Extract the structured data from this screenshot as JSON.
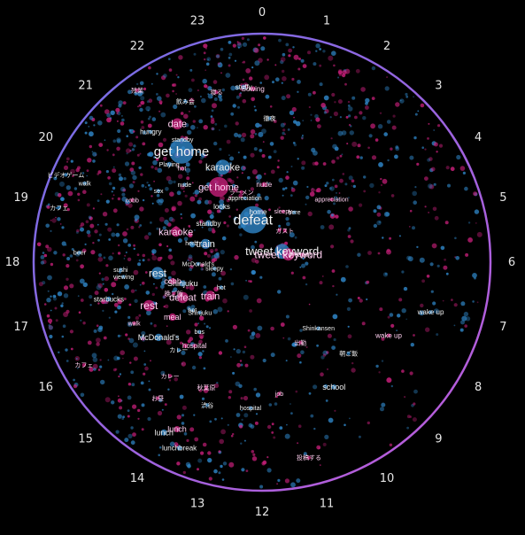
{
  "chart_data": {
    "type": "scatter",
    "layout": "radial 24-hour clock",
    "background": "#000000",
    "colors": {
      "series_blue": "#2f86c8",
      "series_pink": "#c81f7a",
      "ring_start": "#6f6fe6",
      "ring_end": "#c05ad8"
    },
    "hours": [
      "0",
      "1",
      "2",
      "3",
      "4",
      "5",
      "6",
      "7",
      "8",
      "9",
      "10",
      "11",
      "12",
      "13",
      "14",
      "15",
      "16",
      "17",
      "18",
      "19",
      "20",
      "21",
      "22",
      "23"
    ],
    "keywords": [
      {
        "text": "get home",
        "hour": 21.6,
        "r": 0.6,
        "size": 15,
        "weight": 20,
        "color": "blue"
      },
      {
        "text": "get home",
        "hour": 22.0,
        "r": 0.38,
        "size": 11,
        "weight": 16,
        "color": "pink"
      },
      {
        "text": "defeat",
        "hour": 23.2,
        "r": 0.19,
        "size": 16,
        "weight": 22,
        "color": "blue"
      },
      {
        "text": "tweet keyword",
        "hour": 4.1,
        "r": 0.1,
        "size": 13,
        "weight": 12,
        "color": "blue"
      },
      {
        "text": "tweet keyword",
        "hour": 4.9,
        "r": 0.12,
        "size": 12,
        "weight": 10,
        "color": "pink"
      },
      {
        "text": "karaoke",
        "hour": 22.5,
        "r": 0.45,
        "size": 11,
        "weight": 12,
        "color": "blue"
      },
      {
        "text": "karaoke",
        "hour": 19.3,
        "r": 0.4,
        "size": 11,
        "weight": 8,
        "color": "pink"
      },
      {
        "text": "train",
        "hour": 19.2,
        "r": 0.26,
        "size": 11,
        "weight": 8,
        "color": "blue"
      },
      {
        "text": "train",
        "hour": 15.8,
        "r": 0.27,
        "size": 11,
        "weight": 8,
        "color": "pink"
      },
      {
        "text": "rest",
        "hour": 17.6,
        "r": 0.46,
        "size": 12,
        "weight": 10,
        "color": "blue"
      },
      {
        "text": "rest",
        "hour": 16.6,
        "r": 0.53,
        "size": 12,
        "weight": 9,
        "color": "pink"
      },
      {
        "text": "defeat",
        "hour": 16.4,
        "r": 0.38,
        "size": 11,
        "weight": 9,
        "color": "pink"
      },
      {
        "text": "date",
        "hour": 21.9,
        "r": 0.71,
        "size": 11,
        "weight": 9,
        "color": "pink"
      },
      {
        "text": "Shinjuku",
        "hour": 17.0,
        "r": 0.36,
        "size": 9,
        "weight": 5,
        "color": "blue"
      },
      {
        "text": "cobb",
        "hour": 17.2,
        "r": 0.4,
        "size": 9,
        "weight": 5,
        "color": "pink"
      },
      {
        "text": "meal",
        "hour": 15.9,
        "r": 0.46,
        "size": 9,
        "weight": 6,
        "color": "pink"
      },
      {
        "text": "McDonald's",
        "hour": 15.6,
        "r": 0.56,
        "size": 9,
        "weight": 6,
        "color": "blue"
      },
      {
        "text": "hospital",
        "hour": 14.6,
        "r": 0.47,
        "size": 8,
        "weight": 3,
        "color": "pink"
      },
      {
        "text": "school",
        "hour": 10.0,
        "r": 0.63,
        "size": 9,
        "weight": 4,
        "color": "blue"
      },
      {
        "text": "wake up",
        "hour": 8.0,
        "r": 0.64,
        "size": 8,
        "weight": 3,
        "color": "pink"
      },
      {
        "text": "wake up",
        "hour": 7.1,
        "r": 0.77,
        "size": 8,
        "weight": 3,
        "color": "blue"
      },
      {
        "text": "lunch",
        "hour": 14.0,
        "r": 0.86,
        "size": 9,
        "weight": 5,
        "color": "blue"
      },
      {
        "text": "lunch",
        "hour": 13.8,
        "r": 0.82,
        "size": 9,
        "weight": 5,
        "color": "pink"
      },
      {
        "text": "lunchbreak",
        "hour": 13.6,
        "r": 0.89,
        "size": 8,
        "weight": 4,
        "color": "blue"
      },
      {
        "text": "standby",
        "hour": 20.4,
        "r": 0.29,
        "size": 8,
        "weight": 5,
        "color": "blue"
      },
      {
        "text": "standby",
        "hour": 21.8,
        "r": 0.64,
        "size": 7,
        "weight": 3,
        "color": "blue"
      },
      {
        "text": "looks",
        "hour": 21.6,
        "r": 0.3,
        "size": 8,
        "weight": 5,
        "color": "blue"
      },
      {
        "text": "sleepy",
        "hour": 17.5,
        "r": 0.21,
        "size": 7,
        "weight": 3,
        "color": "blue"
      },
      {
        "text": "sleepy",
        "hour": 1.5,
        "r": 0.24,
        "size": 7,
        "weight": 3,
        "color": "pink"
      },
      {
        "text": "nude",
        "hour": 0.1,
        "r": 0.34,
        "size": 8,
        "weight": 4,
        "color": "pink"
      },
      {
        "text": "nude",
        "hour": 21.0,
        "r": 0.48,
        "size": 7,
        "weight": 3,
        "color": "blue"
      },
      {
        "text": "home",
        "hour": 23.7,
        "r": 0.22,
        "size": 8,
        "weight": 4,
        "color": "blue"
      },
      {
        "text": "appreciation",
        "hour": 3.2,
        "r": 0.41,
        "size": 7,
        "weight": 3,
        "color": "pink"
      },
      {
        "text": "appreciation",
        "hour": 23.0,
        "r": 0.29,
        "size": 7,
        "weight": 3,
        "color": "blue"
      },
      {
        "text": "Playing",
        "hour": 21.1,
        "r": 0.59,
        "size": 7,
        "weight": 4,
        "color": "blue"
      },
      {
        "text": "Playing",
        "hour": 5.3,
        "r": 0.18,
        "size": 7,
        "weight": 3,
        "color": "pink"
      },
      {
        "text": "starbucks",
        "hour": 17.1,
        "r": 0.69,
        "size": 8,
        "weight": 4,
        "color": "blue"
      },
      {
        "text": "sushi",
        "hour": 17.8,
        "r": 0.62,
        "size": 7,
        "weight": 3,
        "color": "blue"
      },
      {
        "text": "viewing",
        "hour": 17.6,
        "r": 0.61,
        "size": 7,
        "weight": 3,
        "color": "blue"
      },
      {
        "text": "hot",
        "hour": 15.9,
        "r": 0.21,
        "size": 7,
        "weight": 3,
        "color": "blue"
      },
      {
        "text": "Shinkansen",
        "hour": 9.3,
        "r": 0.38,
        "size": 7,
        "weight": 3,
        "color": "blue"
      },
      {
        "text": "job",
        "hour": 11.5,
        "r": 0.58,
        "size": 7,
        "weight": 3,
        "color": "pink"
      },
      {
        "text": "stuffy",
        "hour": 23.6,
        "r": 0.77,
        "size": 8,
        "weight": 4,
        "color": "blue"
      },
      {
        "text": "Sowing",
        "hour": 23.8,
        "r": 0.76,
        "size": 8,
        "weight": 4,
        "color": "pink"
      },
      {
        "text": "sex",
        "hour": 20.3,
        "r": 0.55,
        "size": 7,
        "weight": 3,
        "color": "blue"
      },
      {
        "text": "hot",
        "hour": 21.3,
        "r": 0.54,
        "size": 7,
        "weight": 3,
        "color": "pink"
      },
      {
        "text": "hot",
        "hour": 15.7,
        "r": 0.37,
        "size": 7,
        "weight": 3,
        "color": "blue"
      },
      {
        "text": "walk",
        "hour": 19.6,
        "r": 0.85,
        "size": 7,
        "weight": 3,
        "color": "blue"
      },
      {
        "text": "here",
        "hour": 2.2,
        "r": 0.26,
        "size": 7,
        "weight": 3,
        "color": "blue"
      },
      {
        "text": "beer",
        "hour": 18.2,
        "r": 0.8,
        "size": 7,
        "weight": 3,
        "color": "blue"
      },
      {
        "text": "hospital",
        "hour": 12.3,
        "r": 0.64,
        "size": 7,
        "weight": 3,
        "color": "blue"
      },
      {
        "text": "bus",
        "hour": 14.8,
        "r": 0.41,
        "size": 7,
        "weight": 3,
        "color": "blue"
      },
      {
        "text": "McDonald's",
        "hour": 17.9,
        "r": 0.28,
        "size": 7,
        "weight": 3,
        "color": "blue"
      },
      {
        "text": "Shinjuku",
        "hour": 15.4,
        "r": 0.35,
        "size": 7,
        "weight": 3,
        "color": "blue"
      },
      {
        "text": "herb",
        "hour": 19.0,
        "r": 0.32,
        "size": 7,
        "weight": 3,
        "color": "blue"
      },
      {
        "text": "cobb",
        "hour": 19.7,
        "r": 0.63,
        "size": 7,
        "weight": 3,
        "color": "pink"
      },
      {
        "text": "walk",
        "hour": 16.3,
        "r": 0.62,
        "size": 7,
        "weight": 3,
        "color": "pink"
      },
      {
        "text": "ガスト",
        "hour": 2.4,
        "r": 0.17,
        "size": 7,
        "weight": 3,
        "color": "pink"
      },
      {
        "text": "カフェ",
        "hour": 19.0,
        "r": 0.92,
        "size": 7,
        "weight": 3,
        "color": "blue"
      },
      {
        "text": "カフェ",
        "hour": 16.0,
        "r": 0.9,
        "size": 7,
        "weight": 3,
        "color": "pink"
      },
      {
        "text": "カレー",
        "hour": 14.9,
        "r": 0.53,
        "size": 7,
        "weight": 3,
        "color": "blue"
      },
      {
        "text": "カレー",
        "hour": 14.6,
        "r": 0.64,
        "size": 7,
        "weight": 3,
        "color": "pink"
      },
      {
        "text": "投稿する",
        "hour": 11.1,
        "r": 0.88,
        "size": 7,
        "weight": 3,
        "color": "pink"
      },
      {
        "text": "ラーメン",
        "hour": 22.9,
        "r": 0.32,
        "size": 7,
        "weight": 3,
        "color": "pink"
      },
      {
        "text": "ビデオゲーム",
        "hour": 19.6,
        "r": 0.94,
        "size": 7,
        "weight": 3,
        "color": "blue"
      },
      {
        "text": "秋葉原",
        "hour": 13.6,
        "r": 0.6,
        "size": 7,
        "weight": 3,
        "color": "pink"
      },
      {
        "text": "渋谷",
        "hour": 13.4,
        "r": 0.67,
        "size": 7,
        "weight": 3,
        "color": "blue"
      },
      {
        "text": "お昼",
        "hour": 14.5,
        "r": 0.75,
        "size": 7,
        "weight": 3,
        "color": "pink"
      },
      {
        "text": "hungry",
        "hour": 21.3,
        "r": 0.75,
        "size": 8,
        "weight": 3,
        "color": "blue"
      },
      {
        "text": "飲み会",
        "hour": 22.3,
        "r": 0.78,
        "size": 7,
        "weight": 3,
        "color": "blue"
      },
      {
        "text": "寝る",
        "hour": 23.0,
        "r": 0.77,
        "size": 7,
        "weight": 3,
        "color": "pink"
      },
      {
        "text": "徹夜",
        "hour": 0.2,
        "r": 0.63,
        "size": 7,
        "weight": 3,
        "color": "blue"
      },
      {
        "text": "残業",
        "hour": 21.6,
        "r": 0.93,
        "size": 7,
        "weight": 3,
        "color": "pink"
      },
      {
        "text": "晩ご飯",
        "hour": 16.7,
        "r": 0.41,
        "size": 7,
        "weight": 3,
        "color": "pink"
      },
      {
        "text": "朝ご飯",
        "hour": 9.1,
        "r": 0.55,
        "size": 7,
        "weight": 3,
        "color": "blue"
      },
      {
        "text": "出勤",
        "hour": 10.3,
        "r": 0.39,
        "size": 7,
        "weight": 3,
        "color": "pink"
      }
    ]
  }
}
